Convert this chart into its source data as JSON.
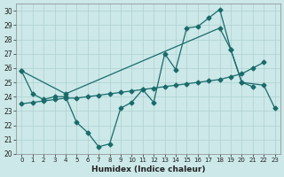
{
  "xlabel": "Humidex (Indice chaleur)",
  "xlim": [
    -0.5,
    23.5
  ],
  "ylim": [
    20,
    30.5
  ],
  "yticks": [
    20,
    21,
    22,
    23,
    24,
    25,
    26,
    27,
    28,
    29,
    30
  ],
  "xticks": [
    0,
    1,
    2,
    3,
    4,
    5,
    6,
    7,
    8,
    9,
    10,
    11,
    12,
    13,
    14,
    15,
    16,
    17,
    18,
    19,
    20,
    21,
    22,
    23
  ],
  "bg_color": "#cce8e8",
  "line_color": "#1a6b6b",
  "grid_color": "#aed0d0",
  "line1_x": [
    0,
    1,
    2,
    3,
    4,
    5,
    6,
    7,
    8,
    9,
    10,
    11,
    12,
    13,
    14,
    15,
    16,
    17,
    18,
    19,
    20,
    21,
    22,
    23
  ],
  "line1_y": [
    25.8,
    24.2,
    23.8,
    24.0,
    24.0,
    22.2,
    21.5,
    20.5,
    20.7,
    23.2,
    23.6,
    24.5,
    23.6,
    27.0,
    25.9,
    28.8,
    28.9,
    29.5,
    30.1,
    27.3,
    25.0,
    24.7,
    null,
    null
  ],
  "line2_x": [
    0,
    4,
    18,
    19,
    20,
    22,
    23
  ],
  "line2_y": [
    25.8,
    24.2,
    28.8,
    27.3,
    25.0,
    24.8,
    23.2
  ],
  "line3_x": [
    0,
    1,
    2,
    3,
    4,
    5,
    6,
    7,
    8,
    9,
    10,
    11,
    12,
    13,
    14,
    15,
    16,
    17,
    18,
    19,
    20,
    21,
    22,
    23
  ],
  "line3_y": [
    23.5,
    23.6,
    23.7,
    23.8,
    23.9,
    23.9,
    24.0,
    24.1,
    24.2,
    24.3,
    24.4,
    24.5,
    24.6,
    24.7,
    24.8,
    24.9,
    25.0,
    25.1,
    25.2,
    25.4,
    25.6,
    26.0,
    26.4,
    null
  ]
}
